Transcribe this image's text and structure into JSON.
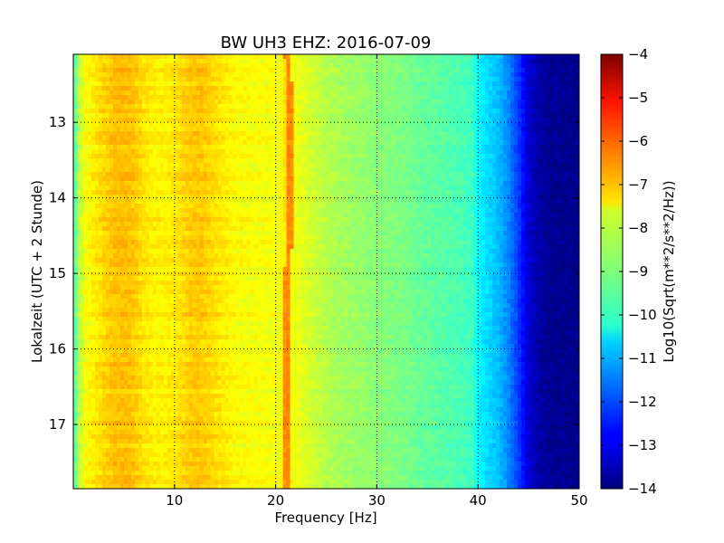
{
  "chart_data": {
    "type": "heatmap",
    "title": "BW UH3 EHZ: 2016-07-09",
    "xlabel": "Frequency [Hz]",
    "ylabel": "Lokalzeit (UTC + 2 Stunde)",
    "colorbar_label": "Log10(Sqrt(m**2/s**2/Hz))",
    "xlim": [
      0,
      50
    ],
    "ylim": [
      12.1,
      17.85
    ],
    "y_inverted": true,
    "x_ticks": [
      10,
      20,
      30,
      40,
      50
    ],
    "x_tick_labels": [
      "10",
      "20",
      "30",
      "40",
      "50"
    ],
    "y_ticks": [
      13,
      14,
      15,
      16,
      17
    ],
    "y_tick_labels": [
      "13",
      "14",
      "15",
      "16",
      "17"
    ],
    "colorbar_ticks": [
      -4,
      -5,
      -6,
      -7,
      -8,
      -9,
      -10,
      -11,
      -12,
      -13,
      -14
    ],
    "colorbar_tick_labels": [
      "−4",
      "−5",
      "−6",
      "−7",
      "−8",
      "−9",
      "−10",
      "−11",
      "−12",
      "−13",
      "−14"
    ],
    "clim": [
      -14,
      -4
    ],
    "colormap": "jet",
    "grid": true,
    "spectral_profile": {
      "frequency_hz": [
        0,
        0.5,
        1,
        2,
        3,
        4,
        5,
        6,
        7,
        8,
        9,
        10,
        11,
        12,
        13,
        14,
        15,
        16,
        17,
        18,
        19,
        20,
        20.8,
        21.2,
        21.6,
        22.5,
        24,
        26,
        28,
        30,
        32,
        34,
        36,
        38,
        39.5,
        40,
        41,
        42,
        43,
        44,
        45,
        46,
        47,
        50
      ],
      "log10_amplitude": [
        -9.6,
        -8.5,
        -7.9,
        -7.6,
        -7.35,
        -7.15,
        -7.1,
        -7.2,
        -7.5,
        -7.65,
        -7.65,
        -7.55,
        -7.35,
        -7.2,
        -7.25,
        -7.45,
        -7.6,
        -7.75,
        -7.8,
        -7.8,
        -7.85,
        -7.85,
        -7.8,
        -6.5,
        -7.85,
        -8.0,
        -8.3,
        -8.6,
        -8.75,
        -8.9,
        -9.0,
        -9.2,
        -9.35,
        -9.5,
        -9.65,
        -10.3,
        -10.6,
        -10.9,
        -11.4,
        -12.2,
        -13.2,
        -13.6,
        -13.8,
        -13.9
      ]
    }
  }
}
